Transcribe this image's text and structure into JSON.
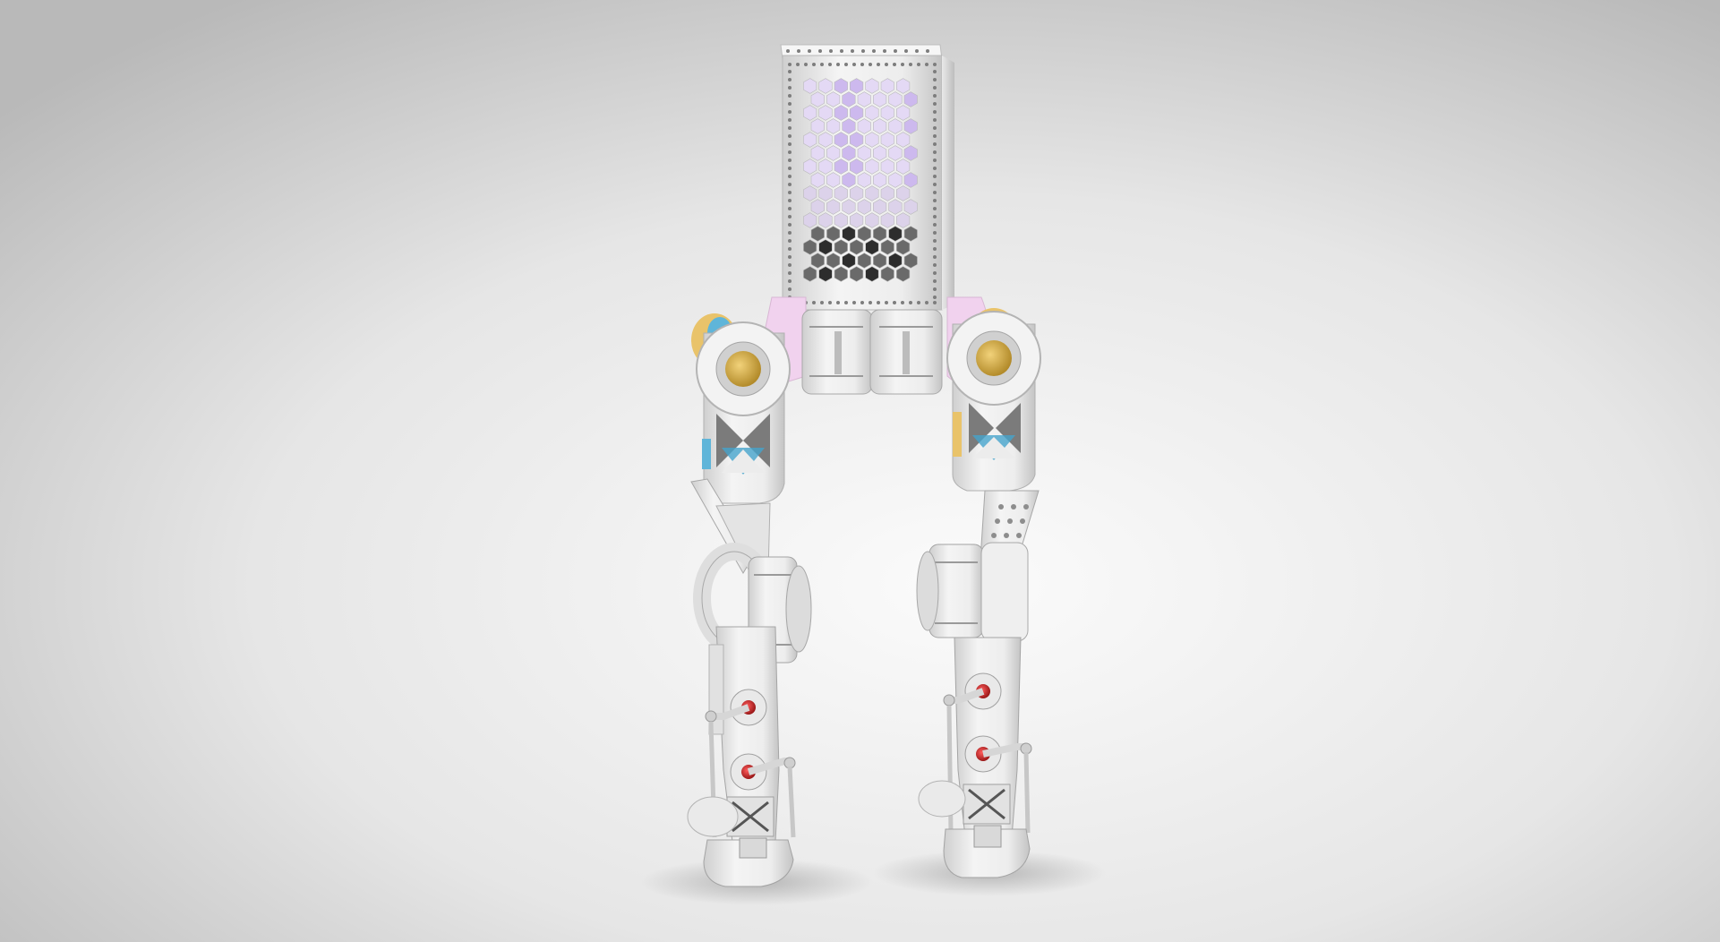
{
  "scene": {
    "subject": "bipedal-robot-render",
    "colors": {
      "background_center": "#fbfbfb",
      "background_edge": "#b9b9b9",
      "body_white": "#f1f1f1",
      "body_shade": "#d2d2d2",
      "body_dark": "#a9a9a9",
      "hex_light": "#e7dcf4",
      "hex_violet": "#c9b6ea",
      "hex_dark": "#2a2a2a",
      "pink_bracket": "#f2d3ef",
      "motor_yellow": "#e0b23a",
      "accent_cyan": "#4fb5d6",
      "accent_red": "#c81e1e",
      "floor_shadow": "#9a9a9a"
    },
    "icons": {
      "servo": "servo-motor-icon",
      "bearing": "red-bearing-icon"
    }
  }
}
